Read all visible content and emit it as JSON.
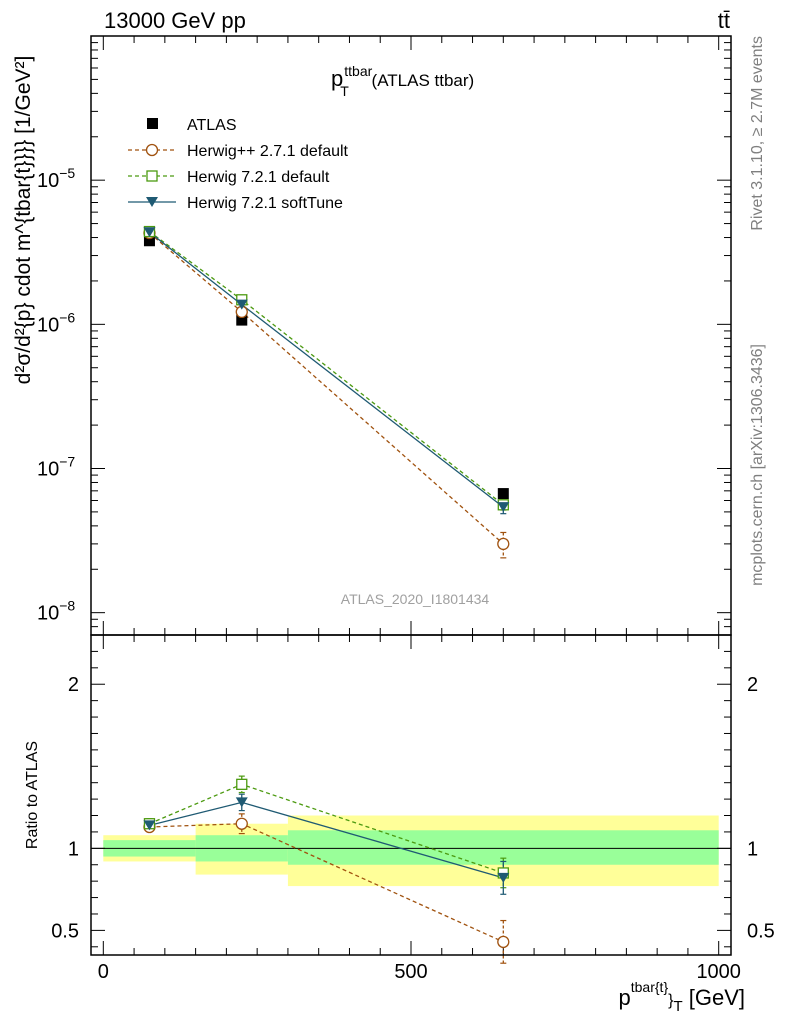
{
  "header": {
    "left": "13000 GeV pp",
    "right": "tt̄"
  },
  "side_labels": {
    "rivet": "Rivet 3.1.10, ≥ 2.7M events",
    "mcplots": "mcplots.cern.ch [arXiv:1306.3436]"
  },
  "colors": {
    "atlas": "#000000",
    "herwigpp": "#a0520f",
    "herwig721": "#4c9a10",
    "softtune": "#1f5a73",
    "band_inner": "#99ff99",
    "band_outer": "#ffff99"
  },
  "chart_data": [
    {
      "type": "line",
      "panel": "main",
      "title_main": "p",
      "title_sup": "ttbar",
      "title_sub": "T",
      "title_suffix": " (ATLAS ttbar)",
      "ylabel": "d²σ/d²{p} cdot m^{tbar{t}}}} [1/GeV²]",
      "yscale": "log",
      "ylim": [
        7e-09,
        0.0001
      ],
      "xlim": [
        -20,
        1020
      ],
      "y_ticks": [
        {
          "value": 1e-08,
          "base": "10",
          "exp": "−8"
        },
        {
          "value": 1e-07,
          "base": "10",
          "exp": "−7"
        },
        {
          "value": 1e-06,
          "base": "10",
          "exp": "−6"
        },
        {
          "value": 1e-05,
          "base": "10",
          "exp": "−5"
        }
      ],
      "watermark": "ATLAS_2020_I1801434",
      "legend": [
        "ATLAS",
        "Herwig++ 2.7.1 default",
        "Herwig 7.2.1 default",
        "Herwig 7.2.1 softTune"
      ],
      "series": [
        {
          "name": "ATLAS",
          "key": "atlas",
          "x": [
            75,
            225,
            650
          ],
          "y": [
            3.8e-06,
            1.07e-06,
            6.7e-08
          ]
        },
        {
          "name": "Herwig++ 2.7.1 default",
          "key": "herwigpp",
          "x": [
            75,
            225,
            650
          ],
          "y": [
            4.3e-06,
            1.22e-06,
            3e-08
          ],
          "yerr": [
            0.05,
            0.05,
            0.2
          ]
        },
        {
          "name": "Herwig 7.2.1 default",
          "key": "herwig721",
          "x": [
            75,
            225,
            650
          ],
          "y": [
            4.4e-06,
            1.48e-06,
            5.6e-08
          ],
          "yerr": [
            0.03,
            0.04,
            0.08
          ]
        },
        {
          "name": "Herwig 7.2.1 softTune",
          "key": "softtune",
          "x": [
            75,
            225,
            650
          ],
          "y": [
            4.35e-06,
            1.37e-06,
            5.4e-08
          ],
          "yerr": [
            0.03,
            0.04,
            0.1
          ]
        }
      ]
    },
    {
      "type": "line",
      "panel": "ratio",
      "ylabel": "Ratio to ATLAS",
      "xlabel_main": "p",
      "xlabel_sup": "tbar{t}",
      "xlabel_sub": "}",
      "xlabel_sub2": "T",
      "xlabel_unit": " [GeV]",
      "ylim": [
        0.35,
        2.3
      ],
      "xlim": [
        -20,
        1020
      ],
      "x_ticks": [
        {
          "value": 0,
          "label": "0"
        },
        {
          "value": 500,
          "label": "500"
        },
        {
          "value": 1000,
          "label": "1000"
        }
      ],
      "y_ticks": [
        {
          "value": 0.5,
          "label": "0.5"
        },
        {
          "value": 1,
          "label": "1"
        },
        {
          "value": 2,
          "label": "2"
        }
      ],
      "bands": [
        {
          "x0": 0,
          "x1": 150,
          "inner": [
            0.95,
            1.05
          ],
          "outer": [
            0.92,
            1.08
          ]
        },
        {
          "x0": 150,
          "x1": 300,
          "inner": [
            0.92,
            1.08
          ],
          "outer": [
            0.84,
            1.15
          ]
        },
        {
          "x0": 300,
          "x1": 1000,
          "inner": [
            0.9,
            1.11
          ],
          "outer": [
            0.77,
            1.2
          ]
        }
      ],
      "series": [
        {
          "name": "Herwig++ 2.7.1 default",
          "key": "herwigpp",
          "x": [
            75,
            225,
            650
          ],
          "y": [
            1.13,
            1.15,
            0.43
          ],
          "yerr": [
            0.03,
            0.06,
            0.13
          ]
        },
        {
          "name": "Herwig 7.2.1 default",
          "key": "herwig721",
          "x": [
            75,
            225,
            650
          ],
          "y": [
            1.15,
            1.39,
            0.85
          ],
          "yerr": [
            0.03,
            0.05,
            0.09
          ]
        },
        {
          "name": "Herwig 7.2.1 softTune",
          "key": "softtune",
          "x": [
            75,
            225,
            650
          ],
          "y": [
            1.14,
            1.28,
            0.82
          ],
          "yerr": [
            0.03,
            0.05,
            0.1
          ]
        }
      ]
    }
  ]
}
